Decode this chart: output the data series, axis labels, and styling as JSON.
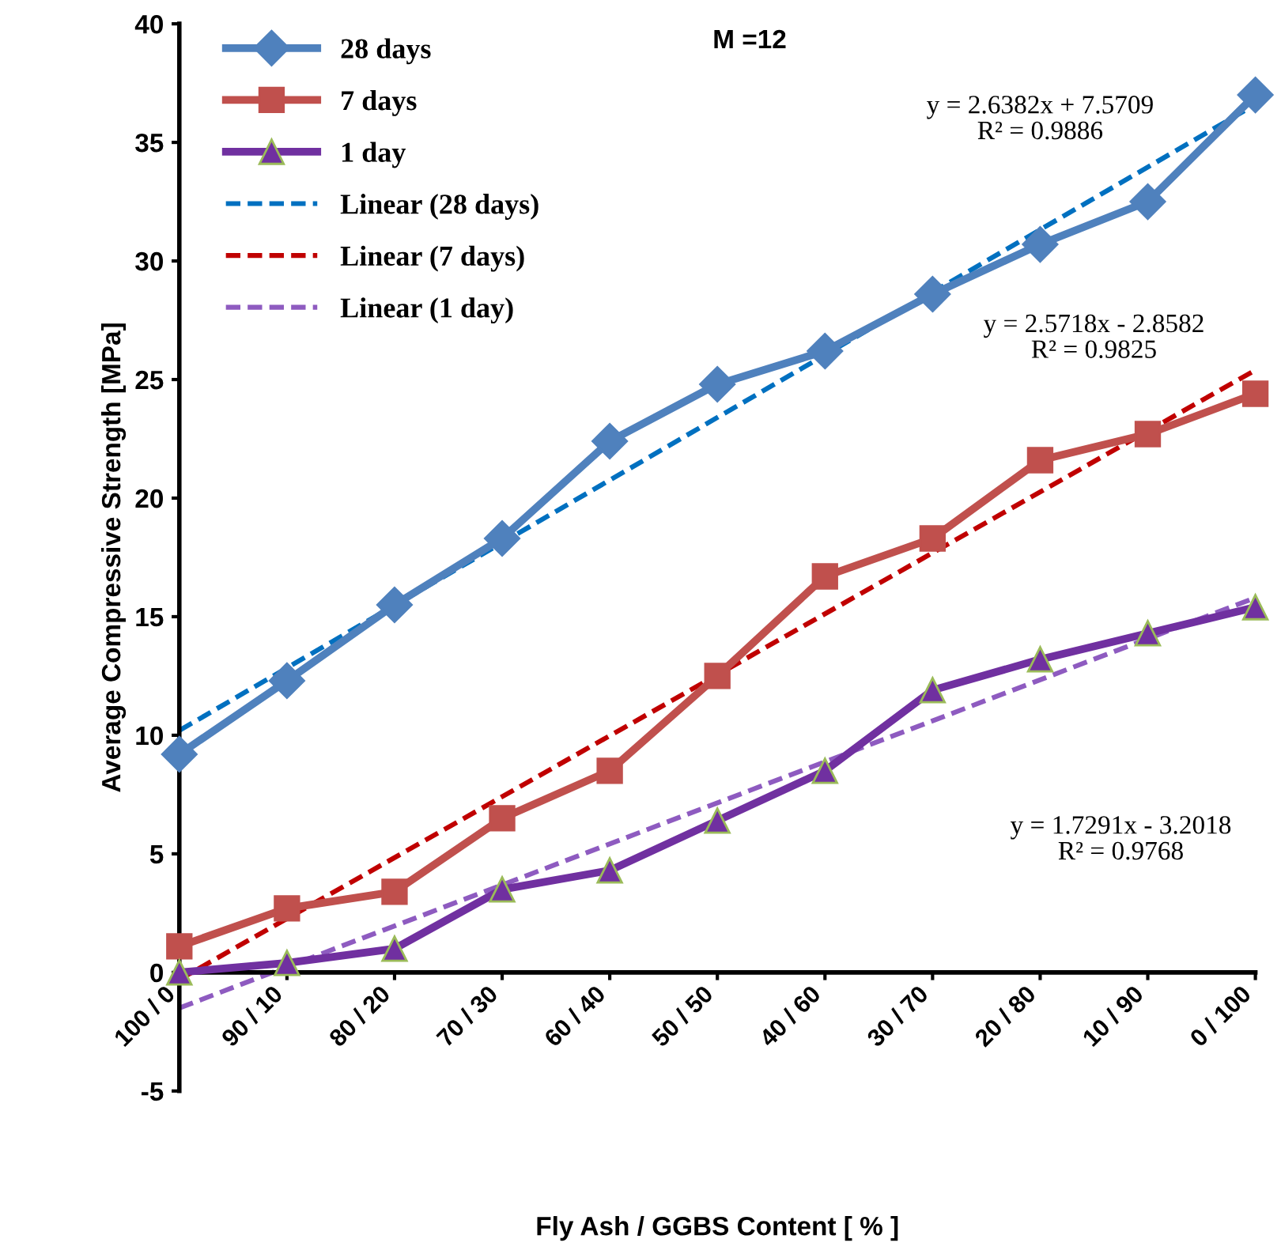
{
  "chart_data": {
    "type": "line",
    "title": "M =12",
    "xlabel": "Fly Ash / GGBS Content [ % ]",
    "ylabel": "Average Compressive Strength [MPa]",
    "categories": [
      "100 / 0",
      "90 / 10",
      "80 / 20",
      "70 / 30",
      "60 / 40",
      "50 / 50",
      "40 / 60",
      "30 / 70",
      "20 / 80",
      "10 / 90",
      "0 / 100"
    ],
    "series": [
      {
        "name": "28 days",
        "color": "#4f81bd",
        "marker": "diamond",
        "line_style": "solid",
        "values": [
          9.2,
          12.3,
          15.5,
          18.3,
          22.4,
          24.8,
          26.2,
          28.6,
          30.7,
          32.5,
          37.0
        ]
      },
      {
        "name": "7 days",
        "color": "#c0504d",
        "marker": "square",
        "line_style": "solid",
        "values": [
          1.1,
          2.7,
          3.4,
          6.5,
          8.5,
          12.5,
          16.7,
          18.3,
          21.6,
          22.7,
          24.4
        ]
      },
      {
        "name": "1 day",
        "color": "#7030a0",
        "marker": "triangle",
        "line_style": "solid",
        "values": [
          0.0,
          0.4,
          1.0,
          3.5,
          4.3,
          6.4,
          8.5,
          11.9,
          13.2,
          14.3,
          15.4
        ]
      },
      {
        "name": "Linear (28 days)",
        "color": "#0070c0",
        "marker": "none",
        "line_style": "dashed",
        "x": [
          "100 / 0",
          "0 / 100"
        ],
        "values": [
          10.2,
          36.6
        ]
      },
      {
        "name": "Linear (7 days)",
        "color": "#c00000",
        "marker": "none",
        "line_style": "dashed",
        "x": [
          "100 / 0",
          "0 / 100"
        ],
        "values": [
          -0.3,
          25.4
        ]
      },
      {
        "name": "Linear (1 day)",
        "color": "#8e5bc0",
        "marker": "none",
        "line_style": "dashed",
        "x": [
          "100 / 0",
          "0 / 100"
        ],
        "values": [
          -1.5,
          15.8
        ]
      }
    ],
    "ylim": [
      -5,
      40
    ],
    "yticks": [
      -5,
      0,
      5,
      10,
      15,
      20,
      25,
      30,
      35,
      40
    ],
    "grid": false,
    "legend": "top left",
    "annotations": [
      "y = 2.6382x + 7.5709\nR² = 0.9886",
      "y = 2.5718x - 2.8582\nR² = 0.9825",
      "y = 1.7291x - 3.2018\nR² = 0.9768"
    ]
  }
}
